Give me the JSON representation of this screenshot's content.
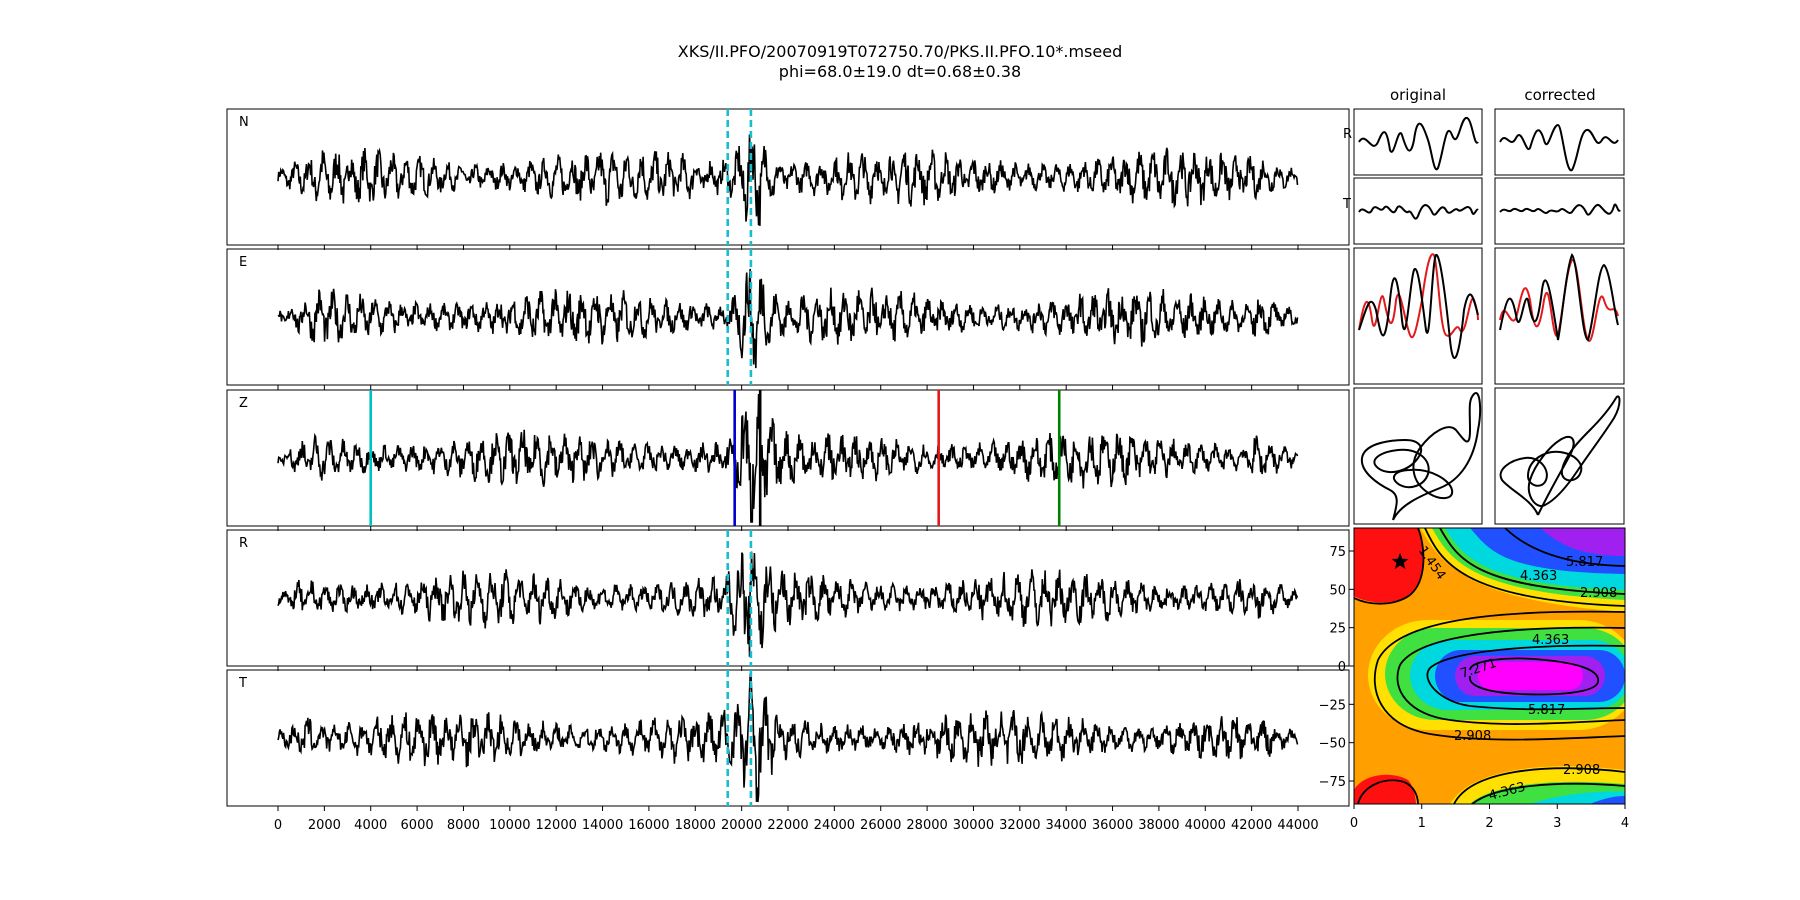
{
  "title": {
    "line1": "XKS/II.PFO/20070919T072750.70/PKS.II.PFO.10*.mseed",
    "line2": "phi=68.0±19.0 dt=0.68±0.38"
  },
  "columns": {
    "original": "original",
    "corrected": "corrected"
  },
  "traces": [
    {
      "label": "N",
      "amp": 0.55
    },
    {
      "label": "E",
      "amp": 0.55
    },
    {
      "label": "Z",
      "amp": 0.75
    },
    {
      "label": "R",
      "amp": 0.55
    },
    {
      "label": "T",
      "amp": 0.5
    }
  ],
  "small_labels": {
    "r": "R",
    "t": "T"
  },
  "colors": {
    "trace": "#000000",
    "window_line": "#17becf",
    "phase_cyan": "#00bfbf",
    "phase_blue": "#0000cc",
    "phase_black": "#000000",
    "phase_red": "#e31a1c",
    "phase_green": "#008000",
    "particle_red": "#e31a1c"
  },
  "chart_data": [
    {
      "type": "line",
      "panel": "seismograms",
      "x_ticks": [
        0,
        2000,
        4000,
        6000,
        8000,
        10000,
        12000,
        14000,
        16000,
        18000,
        20000,
        22000,
        24000,
        26000,
        28000,
        30000,
        32000,
        34000,
        36000,
        38000,
        40000,
        42000,
        44000
      ],
      "xlim": [
        -2200,
        46200
      ],
      "data_range": [
        0,
        44000
      ],
      "window": [
        19400,
        20400
      ],
      "phase_markers": [
        {
          "phase": "cyan",
          "x": 4000
        },
        {
          "phase": "blue",
          "x": 19700
        },
        {
          "phase": "black",
          "x": 20800
        },
        {
          "phase": "red",
          "x": 28500
        },
        {
          "phase": "green",
          "x": 33700
        }
      ]
    },
    {
      "type": "heatmap",
      "panel": "error-surface",
      "x_ticks": [
        0,
        1,
        2,
        3,
        4
      ],
      "y_ticks": [
        75,
        50,
        25,
        0,
        -25,
        -50,
        -75
      ],
      "xlim": [
        0,
        4
      ],
      "ylim": [
        -90,
        90
      ],
      "best": {
        "dt": 0.68,
        "phi": 68.0
      },
      "contour_labels": [
        "1.454",
        "2.908",
        "4.363",
        "5.817",
        "7.271"
      ]
    }
  ]
}
